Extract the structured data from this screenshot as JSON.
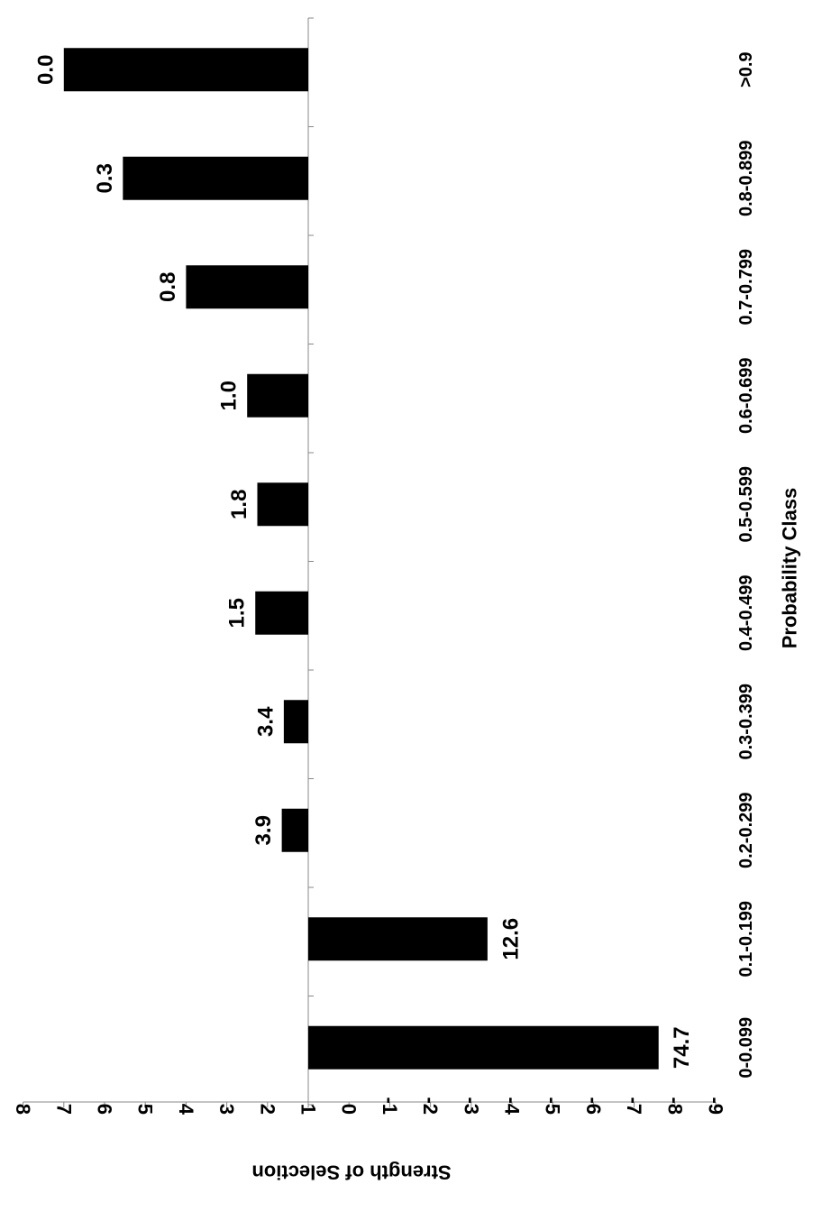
{
  "chart_data": {
    "type": "bar",
    "orientation": "rotated-90-clockwise",
    "categories": [
      "0-0.099",
      "0.1-0.199",
      "0.2-0.299",
      "0.3-0.399",
      "0.4-0.499",
      "0.5-0.599",
      "0.6-0.699",
      "0.7-0.799",
      "0.8-0.899",
      ">0.9"
    ],
    "values": [
      -7.6,
      -3.4,
      1.65,
      1.6,
      2.3,
      2.25,
      2.5,
      4.0,
      5.55,
      7.0
    ],
    "data_labels": [
      "74.7",
      "12.6",
      "3.9",
      "3.4",
      "1.5",
      "1.8",
      "1.0",
      "0.8",
      "0.3",
      "0.0"
    ],
    "xlabel": "Probability Class",
    "ylabel": "Strength of Selection",
    "ylim": [
      -9,
      8
    ],
    "y_ticks": [
      "8",
      "7",
      "6",
      "5",
      "4",
      "3",
      "2",
      "1",
      "0",
      "-1",
      "-2",
      "-3",
      "-4",
      "-5",
      "-6",
      "-7",
      "-8",
      "-9"
    ],
    "baseline": 1,
    "bar_color": "#000000",
    "grid": false,
    "legend": "none"
  }
}
